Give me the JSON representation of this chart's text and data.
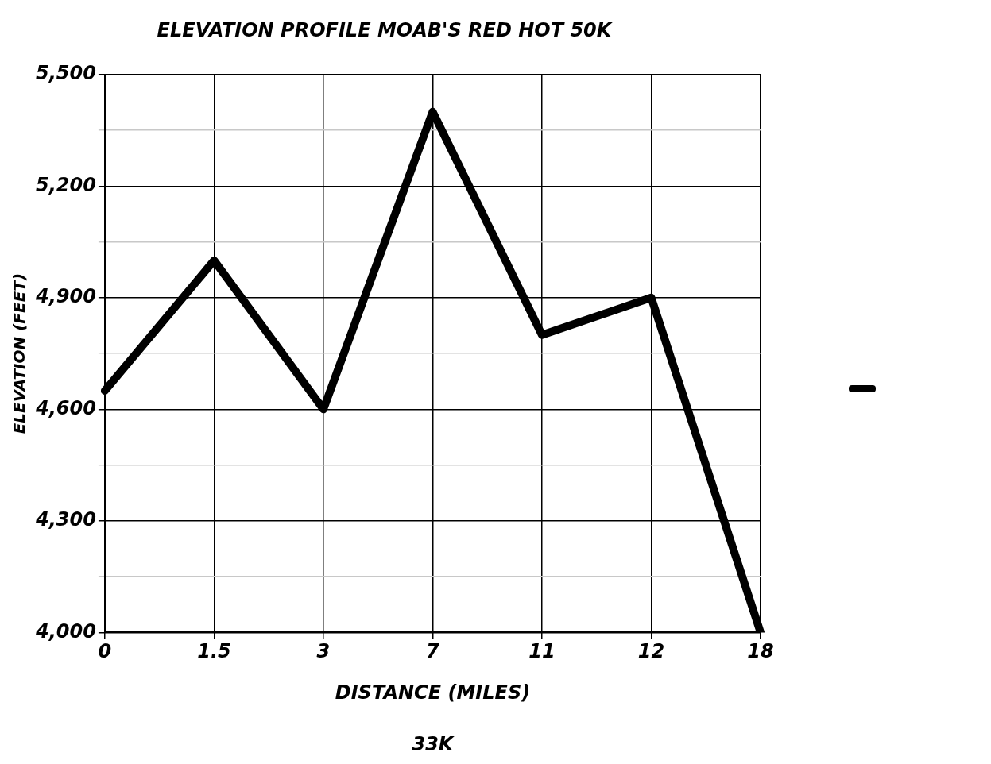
{
  "chart_data": {
    "type": "line",
    "title": "ELEVATION PROFILE MOAB'S RED HOT 50K",
    "xlabel": "DISTANCE (MILES)",
    "ylabel": "ELEVATION (FEET)",
    "annotations": [
      "33K"
    ],
    "categories": [
      "0",
      "1.5",
      "3",
      "7",
      "11",
      "12",
      "18"
    ],
    "series": [
      {
        "color": "#000000",
        "values": [
          4650,
          5000,
          4600,
          5400,
          4800,
          4900,
          4000
        ]
      }
    ],
    "ylim": [
      4000,
      5500
    ],
    "yticks": [
      {
        "value": 4000,
        "label": "4,000"
      },
      {
        "value": 4150,
        "label": null
      },
      {
        "value": 4300,
        "label": "4,300"
      },
      {
        "value": 4450,
        "label": null
      },
      {
        "value": 4600,
        "label": "4,600"
      },
      {
        "value": 4750,
        "label": null
      },
      {
        "value": 4900,
        "label": "4,900"
      },
      {
        "value": 5050,
        "label": null
      },
      {
        "value": 5200,
        "label": "5,200"
      },
      {
        "value": 5350,
        "label": null
      },
      {
        "value": 5500,
        "label": "5,500"
      }
    ],
    "grid": true,
    "marker": "none",
    "line_style": "solid"
  }
}
